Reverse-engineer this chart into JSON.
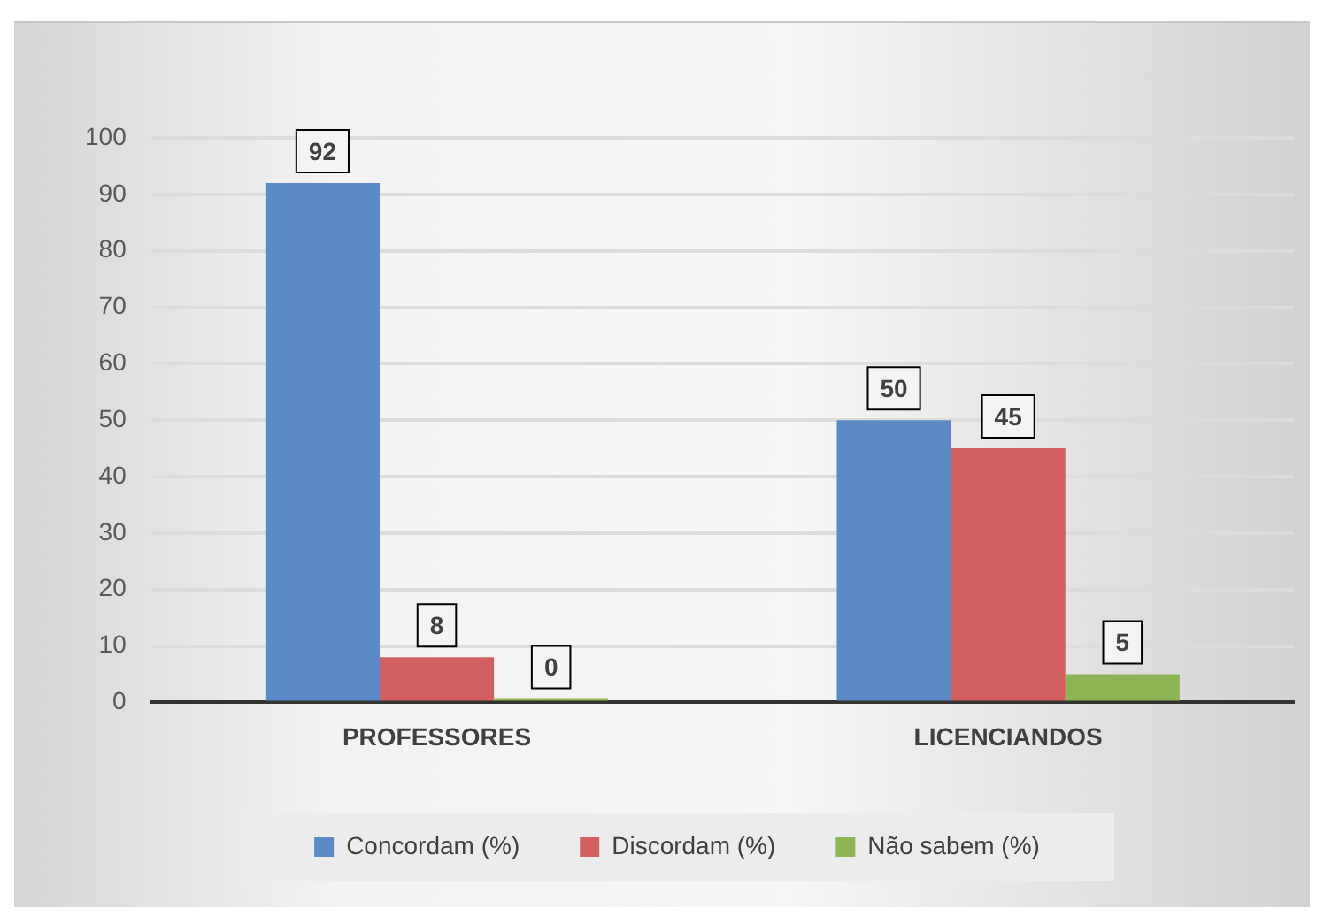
{
  "chart_data": {
    "type": "bar",
    "categories": [
      "PROFESSORES",
      "LICENCIANDOS"
    ],
    "series": [
      {
        "name": "Concordam (%)",
        "color": "#5b8ac6",
        "values": [
          92,
          50
        ]
      },
      {
        "name": "Discordam (%)",
        "color": "#d2605e",
        "values": [
          8,
          45
        ]
      },
      {
        "name": "Não sabem (%)",
        "color": "#8db553",
        "values": [
          0,
          5
        ]
      }
    ],
    "ylim": [
      0,
      100
    ],
    "yticks": [
      0,
      10,
      20,
      30,
      40,
      50,
      60,
      70,
      80,
      90,
      100
    ],
    "grid": "y",
    "legend": "bottom",
    "data_labels": true
  }
}
